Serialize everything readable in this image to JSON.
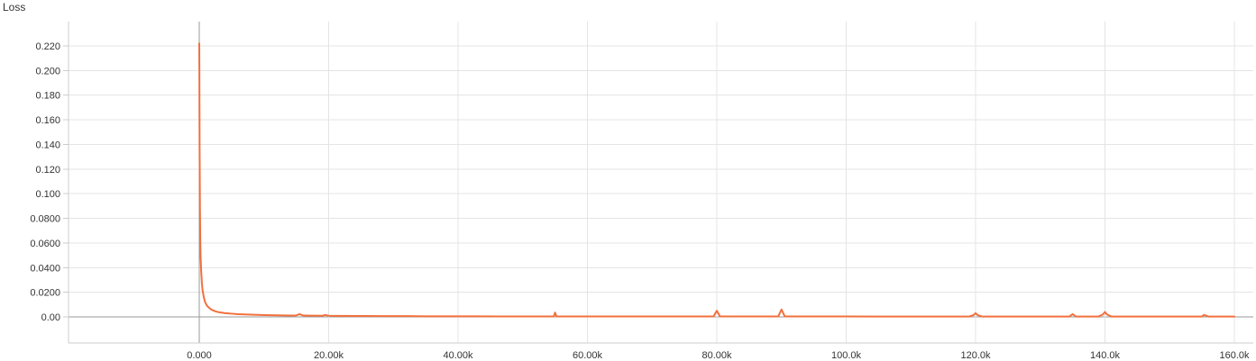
{
  "chart_data": {
    "type": "line",
    "title": "Loss",
    "xlabel": "",
    "ylabel": "",
    "xlim": [
      -20000,
      161000
    ],
    "ylim": [
      -0.021,
      0.24
    ],
    "grid": true,
    "x_ticks": [
      {
        "value": 0,
        "label": "0.000"
      },
      {
        "value": 20000,
        "label": "20.00k"
      },
      {
        "value": 40000,
        "label": "40.00k"
      },
      {
        "value": 60000,
        "label": "60.00k"
      },
      {
        "value": 80000,
        "label": "80.00k"
      },
      {
        "value": 100000,
        "label": "100.0k"
      },
      {
        "value": 120000,
        "label": "120.0k"
      },
      {
        "value": 140000,
        "label": "140.0k"
      },
      {
        "value": 160000,
        "label": "160.0k"
      }
    ],
    "y_ticks": [
      {
        "value": 0.22,
        "label": "0.220"
      },
      {
        "value": 0.2,
        "label": "0.200"
      },
      {
        "value": 0.18,
        "label": "0.180"
      },
      {
        "value": 0.16,
        "label": "0.160"
      },
      {
        "value": 0.14,
        "label": "0.140"
      },
      {
        "value": 0.12,
        "label": "0.120"
      },
      {
        "value": 0.1,
        "label": "0.100"
      },
      {
        "value": 0.08,
        "label": "0.0800"
      },
      {
        "value": 0.06,
        "label": "0.0600"
      },
      {
        "value": 0.04,
        "label": "0.0400"
      },
      {
        "value": 0.02,
        "label": "0.0200"
      },
      {
        "value": 0.0,
        "label": "0.00"
      }
    ],
    "series": [
      {
        "color": "#f2703d",
        "x": [
          0,
          20,
          50,
          100,
          150,
          200,
          300,
          400,
          500,
          700,
          900,
          1200,
          1600,
          2000,
          2500,
          3000,
          4000,
          5000,
          6000,
          7000,
          8000,
          9000,
          10000,
          11000,
          12000,
          13000,
          14000,
          15000,
          15500,
          16000,
          17000,
          18000,
          19000,
          19500,
          20000,
          21000,
          22000,
          24000,
          26000,
          28000,
          30000,
          32000,
          35000,
          38000,
          40000,
          43000,
          46000,
          50000,
          53000,
          54800,
          55000,
          55200,
          56000,
          60000,
          65000,
          70000,
          75000,
          78000,
          79500,
          80000,
          80500,
          81000,
          84000,
          87000,
          89500,
          90000,
          90500,
          92000,
          96000,
          100000,
          105000,
          110000,
          115000,
          119000,
          119700,
          120000,
          120300,
          121000,
          125000,
          130000,
          134500,
          135000,
          135500,
          136000,
          139000,
          139700,
          140000,
          140300,
          141000,
          145000,
          150000,
          155000,
          155300,
          156000,
          160000
        ],
        "y": [
          0.222,
          0.2,
          0.14,
          0.09,
          0.065,
          0.05,
          0.037,
          0.028,
          0.022,
          0.016,
          0.012,
          0.009,
          0.007,
          0.0055,
          0.0045,
          0.0038,
          0.003,
          0.0026,
          0.0022,
          0.002,
          0.0018,
          0.0016,
          0.0015,
          0.0014,
          0.0013,
          0.0012,
          0.0011,
          0.0012,
          0.0022,
          0.0012,
          0.001,
          0.001,
          0.0009,
          0.0015,
          0.0009,
          0.0008,
          0.0008,
          0.0007,
          0.0007,
          0.0006,
          0.0006,
          0.0006,
          0.0005,
          0.0005,
          0.0005,
          0.0005,
          0.0004,
          0.0004,
          0.0004,
          0.0004,
          0.0035,
          0.0004,
          0.0004,
          0.0004,
          0.0004,
          0.0004,
          0.0004,
          0.0004,
          0.0004,
          0.005,
          0.0004,
          0.0004,
          0.0004,
          0.0004,
          0.0004,
          0.006,
          0.0004,
          0.0004,
          0.0004,
          0.0004,
          0.0003,
          0.0003,
          0.0003,
          0.0003,
          0.0015,
          0.003,
          0.0015,
          0.0003,
          0.0003,
          0.0003,
          0.0003,
          0.0022,
          0.0003,
          0.0003,
          0.0003,
          0.002,
          0.004,
          0.002,
          0.0003,
          0.0003,
          0.0003,
          0.0003,
          0.0016,
          0.0003,
          0.0003
        ]
      }
    ]
  }
}
